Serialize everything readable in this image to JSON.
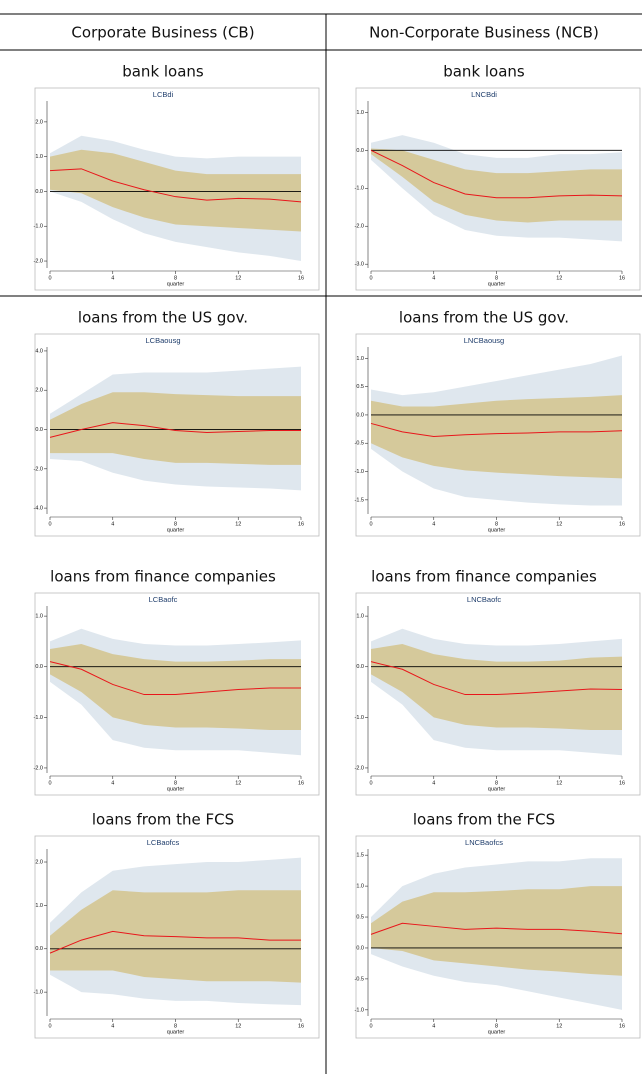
{
  "header": {
    "columns": [
      "Corporate Business (CB)",
      "Non-Corporate Business (NCB)"
    ]
  },
  "chart_data": [
    {
      "type": "irf",
      "heading": "bank loans",
      "title": "LCBdi",
      "x_label": "quarter",
      "x": [
        0,
        2,
        4,
        6,
        8,
        10,
        12,
        14,
        16
      ],
      "xlim": [
        0,
        16
      ],
      "xticks": [
        0,
        4,
        8,
        12,
        16
      ],
      "ylim": [
        -2.2,
        2.6
      ],
      "yticks": [
        {
          "value": 2,
          "label": "2.0"
        },
        {
          "value": 1,
          "label": "1.0"
        },
        {
          "value": 0,
          "label": "0.0"
        },
        {
          "value": -1,
          "label": "-1.0"
        },
        {
          "value": -2,
          "label": "-2.0"
        }
      ],
      "zero_line": true,
      "bands": [
        {
          "color": "#dfe7ee",
          "upper": [
            1.1,
            1.6,
            1.45,
            1.2,
            1.0,
            0.95,
            1.0,
            1.0,
            1.0
          ],
          "lower": [
            0.0,
            -0.3,
            -0.8,
            -1.2,
            -1.45,
            -1.6,
            -1.75,
            -1.85,
            -2.0
          ]
        },
        {
          "color": "#d5c99b",
          "upper": [
            1.0,
            1.2,
            1.1,
            0.85,
            0.6,
            0.5,
            0.5,
            0.5,
            0.5
          ],
          "lower": [
            0.05,
            -0.05,
            -0.45,
            -0.75,
            -0.95,
            -1.0,
            -1.05,
            -1.1,
            -1.15
          ]
        }
      ],
      "series": [
        {
          "color": "#e8161b",
          "values": [
            0.6,
            0.65,
            0.3,
            0.05,
            -0.15,
            -0.25,
            -0.2,
            -0.22,
            -0.3
          ]
        }
      ]
    },
    {
      "type": "irf",
      "heading": "bank loans",
      "title": "LNCBdi",
      "x_label": "quarter",
      "x": [
        0,
        2,
        4,
        6,
        8,
        10,
        12,
        14,
        16
      ],
      "xlim": [
        0,
        16
      ],
      "xticks": [
        0,
        4,
        8,
        12,
        16
      ],
      "ylim": [
        -3.1,
        1.3
      ],
      "yticks": [
        {
          "value": 1,
          "label": "1.0"
        },
        {
          "value": 0,
          "label": "0.0"
        },
        {
          "value": -1,
          "label": "-1.0"
        },
        {
          "value": -2,
          "label": "-2.0"
        },
        {
          "value": -3,
          "label": "-3.0"
        }
      ],
      "zero_line": true,
      "bands": [
        {
          "color": "#dfe7ee",
          "upper": [
            0.2,
            0.4,
            0.2,
            -0.1,
            -0.2,
            -0.2,
            -0.1,
            -0.1,
            -0.05
          ],
          "lower": [
            -0.25,
            -1.0,
            -1.7,
            -2.1,
            -2.25,
            -2.3,
            -2.3,
            -2.35,
            -2.4
          ]
        },
        {
          "color": "#d5c99b",
          "upper": [
            0.05,
            0.0,
            -0.25,
            -0.5,
            -0.6,
            -0.6,
            -0.55,
            -0.5,
            -0.5
          ],
          "lower": [
            -0.1,
            -0.7,
            -1.35,
            -1.7,
            -1.85,
            -1.9,
            -1.85,
            -1.85,
            -1.85
          ]
        }
      ],
      "series": [
        {
          "color": "#e8161b",
          "values": [
            0.0,
            -0.4,
            -0.85,
            -1.15,
            -1.25,
            -1.25,
            -1.2,
            -1.18,
            -1.2
          ]
        }
      ]
    },
    {
      "type": "irf",
      "heading": "loans from the US gov.",
      "title": "LCBaousg",
      "x_label": "quarter",
      "x": [
        0,
        2,
        4,
        6,
        8,
        10,
        12,
        14,
        16
      ],
      "xlim": [
        0,
        16
      ],
      "xticks": [
        0,
        4,
        8,
        12,
        16
      ],
      "ylim": [
        -4.3,
        4.2
      ],
      "yticks": [
        {
          "value": 4,
          "label": "4.0"
        },
        {
          "value": 2,
          "label": "2.0"
        },
        {
          "value": 0,
          "label": "0.0"
        },
        {
          "value": -2,
          "label": "-2.0"
        },
        {
          "value": -4,
          "label": "-4.0"
        }
      ],
      "zero_line": true,
      "bands": [
        {
          "color": "#dfe7ee",
          "upper": [
            0.8,
            1.8,
            2.8,
            2.9,
            2.9,
            2.9,
            3.0,
            3.1,
            3.2
          ],
          "lower": [
            -1.5,
            -1.6,
            -2.2,
            -2.6,
            -2.8,
            -2.9,
            -2.95,
            -3.0,
            -3.1
          ]
        },
        {
          "color": "#d5c99b",
          "upper": [
            0.5,
            1.3,
            1.9,
            1.9,
            1.8,
            1.75,
            1.7,
            1.7,
            1.7
          ],
          "lower": [
            -1.2,
            -1.2,
            -1.2,
            -1.5,
            -1.7,
            -1.7,
            -1.75,
            -1.8,
            -1.8
          ]
        }
      ],
      "series": [
        {
          "color": "#e8161b",
          "values": [
            -0.4,
            0.0,
            0.35,
            0.2,
            -0.05,
            -0.15,
            -0.1,
            -0.05,
            -0.05
          ]
        }
      ]
    },
    {
      "type": "irf",
      "heading": "loans from the US gov.",
      "title": "LNCBaousg",
      "x_label": "quarter",
      "x": [
        0,
        2,
        4,
        6,
        8,
        10,
        12,
        14,
        16
      ],
      "xlim": [
        0,
        16
      ],
      "xticks": [
        0,
        4,
        8,
        12,
        16
      ],
      "ylim": [
        -1.75,
        1.2
      ],
      "yticks": [
        {
          "value": 1,
          "label": "1.0"
        },
        0.5,
        {
          "value": 0,
          "label": "0.0"
        },
        -0.5,
        {
          "value": -1,
          "label": "-1.0"
        },
        -1.5
      ],
      "zero_line": true,
      "bands": [
        {
          "color": "#dfe7ee",
          "upper": [
            0.45,
            0.35,
            0.4,
            0.5,
            0.6,
            0.7,
            0.8,
            0.9,
            1.05
          ],
          "lower": [
            -0.6,
            -1.0,
            -1.3,
            -1.45,
            -1.5,
            -1.55,
            -1.58,
            -1.6,
            -1.6
          ]
        },
        {
          "color": "#d5c99b",
          "upper": [
            0.25,
            0.15,
            0.15,
            0.2,
            0.25,
            0.28,
            0.3,
            0.32,
            0.35
          ],
          "lower": [
            -0.5,
            -0.75,
            -0.9,
            -0.98,
            -1.02,
            -1.05,
            -1.08,
            -1.1,
            -1.12
          ]
        }
      ],
      "series": [
        {
          "color": "#e8161b",
          "values": [
            -0.15,
            -0.3,
            -0.38,
            -0.35,
            -0.33,
            -0.32,
            -0.3,
            -0.3,
            -0.28
          ]
        }
      ]
    },
    {
      "type": "irf",
      "heading": "loans from finance companies",
      "title": "LCBaofc",
      "x_label": "quarter",
      "x": [
        0,
        2,
        4,
        6,
        8,
        10,
        12,
        14,
        16
      ],
      "xlim": [
        0,
        16
      ],
      "xticks": [
        0,
        4,
        8,
        12,
        16
      ],
      "ylim": [
        -2.1,
        1.2
      ],
      "yticks": [
        {
          "value": 1,
          "label": "1.0"
        },
        {
          "value": 0,
          "label": "0.0"
        },
        {
          "value": -1,
          "label": "-1.0"
        },
        {
          "value": -2,
          "label": "-2.0"
        }
      ],
      "zero_line": true,
      "bands": [
        {
          "color": "#dfe7ee",
          "upper": [
            0.5,
            0.75,
            0.55,
            0.45,
            0.42,
            0.42,
            0.45,
            0.48,
            0.52
          ],
          "lower": [
            -0.3,
            -0.75,
            -1.45,
            -1.6,
            -1.65,
            -1.65,
            -1.65,
            -1.7,
            -1.75
          ]
        },
        {
          "color": "#d5c99b",
          "upper": [
            0.35,
            0.45,
            0.25,
            0.15,
            0.1,
            0.1,
            0.12,
            0.15,
            0.15
          ],
          "lower": [
            -0.15,
            -0.5,
            -1.0,
            -1.15,
            -1.2,
            -1.2,
            -1.22,
            -1.25,
            -1.25
          ]
        }
      ],
      "series": [
        {
          "color": "#e8161b",
          "values": [
            0.1,
            -0.05,
            -0.35,
            -0.55,
            -0.55,
            -0.5,
            -0.45,
            -0.42,
            -0.42
          ]
        }
      ]
    },
    {
      "type": "irf",
      "heading": "loans from finance companies",
      "title": "LNCBaofc",
      "x_label": "quarter",
      "x": [
        0,
        2,
        4,
        6,
        8,
        10,
        12,
        14,
        16
      ],
      "xlim": [
        0,
        16
      ],
      "xticks": [
        0,
        4,
        8,
        12,
        16
      ],
      "ylim": [
        -2.1,
        1.2
      ],
      "yticks": [
        {
          "value": 1,
          "label": "1.0"
        },
        {
          "value": 0,
          "label": "0.0"
        },
        {
          "value": -1,
          "label": "-1.0"
        },
        {
          "value": -2,
          "label": "-2.0"
        }
      ],
      "zero_line": true,
      "bands": [
        {
          "color": "#dfe7ee",
          "upper": [
            0.5,
            0.75,
            0.55,
            0.45,
            0.42,
            0.42,
            0.45,
            0.5,
            0.55
          ],
          "lower": [
            -0.3,
            -0.75,
            -1.45,
            -1.6,
            -1.65,
            -1.65,
            -1.65,
            -1.7,
            -1.75
          ]
        },
        {
          "color": "#d5c99b",
          "upper": [
            0.35,
            0.45,
            0.25,
            0.15,
            0.1,
            0.1,
            0.12,
            0.18,
            0.2
          ],
          "lower": [
            -0.15,
            -0.5,
            -1.0,
            -1.15,
            -1.2,
            -1.2,
            -1.22,
            -1.25,
            -1.25
          ]
        }
      ],
      "series": [
        {
          "color": "#e8161b",
          "values": [
            0.1,
            -0.05,
            -0.35,
            -0.55,
            -0.55,
            -0.52,
            -0.48,
            -0.44,
            -0.45
          ]
        }
      ]
    },
    {
      "type": "irf",
      "heading": "loans from the FCS",
      "title": "LCBaofcs",
      "x_label": "quarter",
      "x": [
        0,
        2,
        4,
        6,
        8,
        10,
        12,
        14,
        16
      ],
      "xlim": [
        0,
        16
      ],
      "xticks": [
        0,
        4,
        8,
        12,
        16
      ],
      "ylim": [
        -1.55,
        2.3
      ],
      "yticks": [
        {
          "value": 2,
          "label": "2.0"
        },
        {
          "value": 1,
          "label": "1.0"
        },
        {
          "value": 0,
          "label": "0.0"
        },
        {
          "value": -1,
          "label": "-1.0"
        }
      ],
      "zero_line": true,
      "bands": [
        {
          "color": "#dfe7ee",
          "upper": [
            0.6,
            1.3,
            1.8,
            1.9,
            1.95,
            2.0,
            2.0,
            2.05,
            2.1
          ],
          "lower": [
            -0.6,
            -1.0,
            -1.05,
            -1.15,
            -1.2,
            -1.2,
            -1.25,
            -1.28,
            -1.3
          ]
        },
        {
          "color": "#d5c99b",
          "upper": [
            0.3,
            0.9,
            1.35,
            1.3,
            1.3,
            1.3,
            1.35,
            1.35,
            1.35
          ],
          "lower": [
            -0.5,
            -0.5,
            -0.5,
            -0.65,
            -0.7,
            -0.75,
            -0.75,
            -0.75,
            -0.78
          ]
        }
      ],
      "series": [
        {
          "color": "#e8161b",
          "values": [
            -0.1,
            0.2,
            0.4,
            0.3,
            0.28,
            0.25,
            0.25,
            0.2,
            0.2
          ]
        }
      ]
    },
    {
      "type": "irf",
      "heading": "loans from the FCS",
      "title": "LNCBaofcs",
      "x_label": "quarter",
      "x": [
        0,
        2,
        4,
        6,
        8,
        10,
        12,
        14,
        16
      ],
      "xlim": [
        0,
        16
      ],
      "xticks": [
        0,
        4,
        8,
        12,
        16
      ],
      "ylim": [
        -1.1,
        1.6
      ],
      "yticks": [
        1.5,
        {
          "value": 1,
          "label": "1.0"
        },
        0.5,
        {
          "value": 0,
          "label": "0.0"
        },
        -0.5,
        {
          "value": -1,
          "label": "-1.0"
        }
      ],
      "zero_line": true,
      "bands": [
        {
          "color": "#dfe7ee",
          "upper": [
            0.5,
            1.0,
            1.2,
            1.3,
            1.35,
            1.4,
            1.4,
            1.45,
            1.45
          ],
          "lower": [
            -0.1,
            -0.3,
            -0.45,
            -0.55,
            -0.6,
            -0.7,
            -0.8,
            -0.9,
            -1.0
          ]
        },
        {
          "color": "#d5c99b",
          "upper": [
            0.4,
            0.75,
            0.9,
            0.9,
            0.92,
            0.95,
            0.95,
            1.0,
            1.0
          ],
          "lower": [
            0.0,
            -0.05,
            -0.2,
            -0.25,
            -0.3,
            -0.35,
            -0.38,
            -0.42,
            -0.45
          ]
        }
      ],
      "series": [
        {
          "color": "#e8161b",
          "values": [
            0.22,
            0.4,
            0.35,
            0.3,
            0.32,
            0.3,
            0.3,
            0.27,
            0.23
          ]
        }
      ]
    }
  ]
}
